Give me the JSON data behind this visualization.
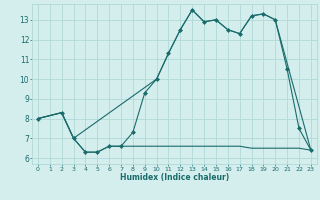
{
  "title": "",
  "xlabel": "Humidex (Indice chaleur)",
  "ylabel": "",
  "bg_color": "#d4eeee",
  "line_color": "#1a6b6b",
  "grid_color": "#b0d8d8",
  "xlim": [
    -0.5,
    23.5
  ],
  "ylim": [
    5.7,
    13.8
  ],
  "xticks": [
    0,
    1,
    2,
    3,
    4,
    5,
    6,
    7,
    8,
    9,
    10,
    11,
    12,
    13,
    14,
    15,
    16,
    17,
    18,
    19,
    20,
    21,
    22,
    23
  ],
  "yticks": [
    6,
    7,
    8,
    9,
    10,
    11,
    12,
    13
  ],
  "line1_x": [
    0,
    2,
    3,
    4,
    5,
    6,
    7,
    8,
    9,
    10,
    11,
    12,
    13,
    14,
    15,
    16,
    17,
    18,
    19,
    20,
    21,
    22,
    23
  ],
  "line1_y": [
    8.0,
    8.3,
    7.0,
    6.3,
    6.3,
    6.6,
    6.6,
    7.3,
    9.3,
    10.0,
    11.3,
    12.5,
    13.5,
    12.9,
    13.0,
    12.5,
    12.3,
    13.2,
    13.3,
    13.0,
    10.5,
    7.5,
    6.4
  ],
  "line2_x": [
    0,
    2,
    3,
    10,
    11,
    12,
    13,
    14,
    15,
    16,
    17,
    18,
    19,
    20,
    23
  ],
  "line2_y": [
    8.0,
    8.3,
    7.0,
    10.0,
    11.3,
    12.5,
    13.5,
    12.9,
    13.0,
    12.5,
    12.3,
    13.2,
    13.3,
    13.0,
    6.4
  ],
  "line3_x": [
    0,
    2,
    3,
    4,
    5,
    6,
    7,
    8,
    9,
    10,
    11,
    12,
    13,
    14,
    15,
    16,
    17,
    18,
    19,
    20,
    21,
    22,
    23
  ],
  "line3_y": [
    8.0,
    8.3,
    7.0,
    6.3,
    6.3,
    6.6,
    6.6,
    6.6,
    6.6,
    6.6,
    6.6,
    6.6,
    6.6,
    6.6,
    6.6,
    6.6,
    6.6,
    6.5,
    6.5,
    6.5,
    6.5,
    6.5,
    6.4
  ]
}
